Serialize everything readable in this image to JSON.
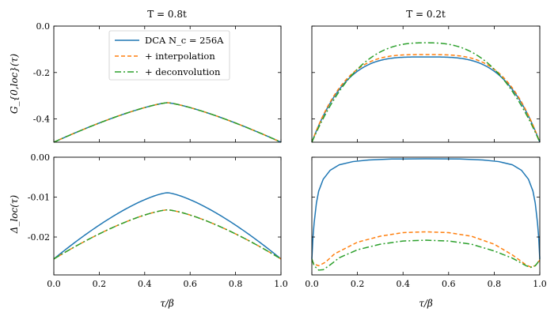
{
  "chart_data": [
    {
      "panel": "top-left",
      "type": "line",
      "title": "T = 0.8t",
      "xlabel": "",
      "ylabel": "G_{0,loc}(τ)",
      "xlim": [
        0,
        1
      ],
      "ylim": [
        -0.5,
        0.0
      ],
      "yticks": [
        0.0,
        -0.2,
        -0.4
      ],
      "ytick_labels": [
        "0.0",
        "-0.2",
        "-0.4"
      ],
      "xticks": [
        0,
        0.2,
        0.4,
        0.6,
        0.8,
        1.0
      ],
      "series": [
        {
          "name": "DCA Nc = 256A",
          "endpoint": -0.5,
          "mid": -0.33,
          "p": 1.3
        },
        {
          "name": "+ interpolation",
          "endpoint": -0.5,
          "mid": -0.33,
          "p": 1.3
        },
        {
          "name": "+ deconvolution",
          "endpoint": -0.5,
          "mid": -0.33,
          "p": 1.3
        }
      ]
    },
    {
      "panel": "top-right",
      "type": "line",
      "title": "T = 0.2t",
      "xlabel": "",
      "ylabel": "",
      "xlim": [
        0,
        1
      ],
      "ylim": [
        -0.5,
        0.0
      ],
      "yticks": [
        0.0,
        -0.2,
        -0.4
      ],
      "xticks": [
        0,
        0.2,
        0.4,
        0.6,
        0.8,
        1.0
      ],
      "series": [
        {
          "name": "DCA Nc = 256A",
          "endpoint": -0.5,
          "mid": -0.133,
          "p": 3.5
        },
        {
          "name": "+ interpolation",
          "endpoint": -0.5,
          "mid": -0.123,
          "p": 3.5
        },
        {
          "name": "+ deconvolution",
          "endpoint": -0.5,
          "mid": -0.072,
          "p": 2.6
        }
      ]
    },
    {
      "panel": "bottom-left",
      "type": "line",
      "title": "",
      "xlabel": "τ/β",
      "ylabel": "Δ_loc(τ)",
      "xlim": [
        0,
        1
      ],
      "ylim": [
        -0.0295,
        0.0
      ],
      "yticks": [
        0.0,
        -0.01,
        -0.02
      ],
      "ytick_labels": [
        "0.00",
        "-0.01",
        "-0.02"
      ],
      "xticks": [
        0,
        0.2,
        0.4,
        0.6,
        0.8,
        1.0
      ],
      "xtick_labels": [
        "0.0",
        "0.2",
        "0.4",
        "0.6",
        "0.8",
        "1.0"
      ],
      "series": [
        {
          "name": "DCA Nc = 256A",
          "endpoint": -0.0255,
          "mid": -0.0089,
          "p": 1.4
        },
        {
          "name": "+ interpolation",
          "endpoint": -0.0255,
          "mid": -0.0132,
          "p": 1.4
        },
        {
          "name": "+ deconvolution",
          "endpoint": -0.0255,
          "mid": -0.0132,
          "p": 1.4
        }
      ]
    },
    {
      "panel": "bottom-right",
      "type": "line",
      "title": "",
      "xlabel": "τ/β",
      "ylabel": "",
      "xlim": [
        0,
        1
      ],
      "ylim": [
        -0.0295,
        0.0
      ],
      "yticks": [
        0.0,
        -0.01,
        -0.02
      ],
      "xticks": [
        0,
        0.2,
        0.4,
        0.6,
        0.8,
        1.0
      ],
      "xtick_labels": [
        "0.0",
        "0.2",
        "0.4",
        "0.6",
        "0.8",
        "1.0"
      ],
      "series": [
        {
          "name": "DCA Nc = 256A",
          "points": [
            [
              0,
              -0.0255
            ],
            [
              0.005,
              -0.02
            ],
            [
              0.01,
              -0.0165
            ],
            [
              0.02,
              -0.0115
            ],
            [
              0.03,
              -0.0085
            ],
            [
              0.05,
              -0.0055
            ],
            [
              0.08,
              -0.0033
            ],
            [
              0.12,
              -0.0019
            ],
            [
              0.18,
              -0.0011
            ],
            [
              0.25,
              -0.0007
            ],
            [
              0.35,
              -0.00045
            ],
            [
              0.5,
              -0.0004
            ],
            [
              0.65,
              -0.00045
            ],
            [
              0.75,
              -0.0007
            ],
            [
              0.82,
              -0.0011
            ],
            [
              0.88,
              -0.0019
            ],
            [
              0.92,
              -0.0033
            ],
            [
              0.95,
              -0.0055
            ],
            [
              0.97,
              -0.0085
            ],
            [
              0.98,
              -0.0115
            ],
            [
              0.99,
              -0.0165
            ],
            [
              0.995,
              -0.02
            ],
            [
              1.0,
              -0.0255
            ]
          ]
        },
        {
          "name": "+ interpolation",
          "points": [
            [
              0,
              -0.0258
            ],
            [
              0.01,
              -0.0268
            ],
            [
              0.03,
              -0.0272
            ],
            [
              0.06,
              -0.0263
            ],
            [
              0.1,
              -0.0242
            ],
            [
              0.2,
              -0.0213
            ],
            [
              0.3,
              -0.0198
            ],
            [
              0.4,
              -0.0189
            ],
            [
              0.5,
              -0.0187
            ],
            [
              0.6,
              -0.0189
            ],
            [
              0.7,
              -0.0198
            ],
            [
              0.8,
              -0.0218
            ],
            [
              0.88,
              -0.0245
            ],
            [
              0.94,
              -0.027
            ],
            [
              0.96,
              -0.0275
            ],
            [
              0.98,
              -0.0272
            ],
            [
              0.99,
              -0.0265
            ],
            [
              1.0,
              -0.0258
            ]
          ]
        },
        {
          "name": "+ deconvolution",
          "points": [
            [
              0,
              -0.0255
            ],
            [
              0.01,
              -0.0272
            ],
            [
              0.03,
              -0.0283
            ],
            [
              0.05,
              -0.0282
            ],
            [
              0.08,
              -0.027
            ],
            [
              0.12,
              -0.0252
            ],
            [
              0.2,
              -0.0232
            ],
            [
              0.3,
              -0.0218
            ],
            [
              0.4,
              -0.021
            ],
            [
              0.5,
              -0.0208
            ],
            [
              0.6,
              -0.021
            ],
            [
              0.7,
              -0.0218
            ],
            [
              0.8,
              -0.0235
            ],
            [
              0.88,
              -0.0253
            ],
            [
              0.94,
              -0.0272
            ],
            [
              0.96,
              -0.0276
            ],
            [
              0.98,
              -0.0272
            ],
            [
              0.99,
              -0.0265
            ],
            [
              1.0,
              -0.0255
            ]
          ]
        }
      ]
    }
  ],
  "legend": {
    "placement": "top-left panel, upper-left",
    "entries": [
      "DCA N_c = 256A",
      "+ interpolation",
      "+ deconvolution"
    ]
  },
  "colors": {
    "series": [
      "#1f77b4",
      "#ff7f0e",
      "#2ca02c"
    ],
    "axes": "#000000"
  }
}
